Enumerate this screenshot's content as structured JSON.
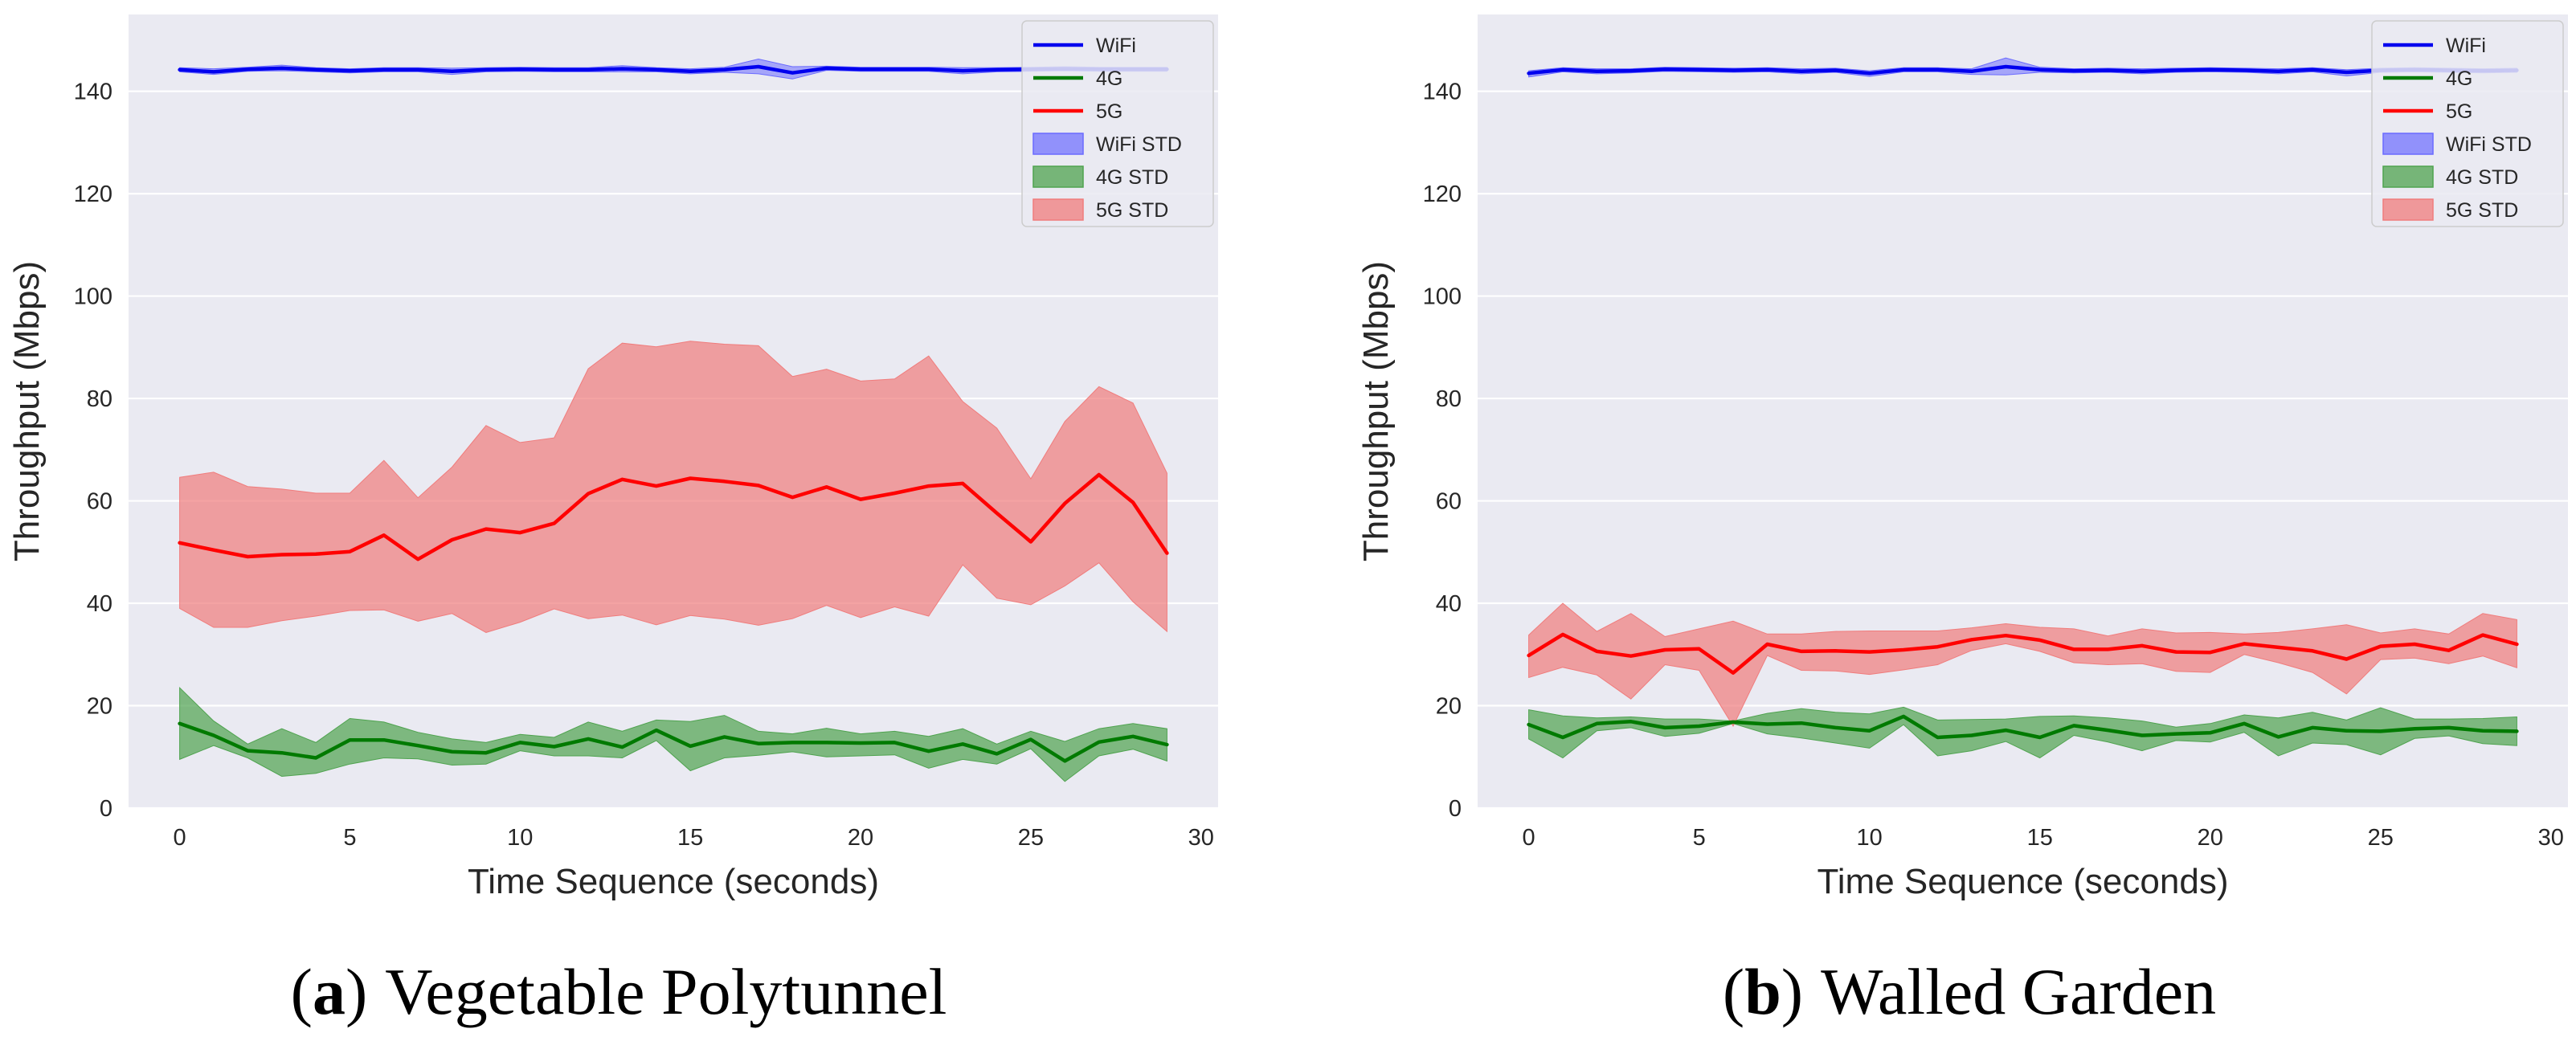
{
  "colors": {
    "wifi": "#0000ee",
    "lte4g": "#007a00",
    "nr5g": "#ff0000",
    "wifi_band": "#6b6bff",
    "lte4g_band": "#4fa34f",
    "nr5g_band": "#f07c7c",
    "panel_bg": "#eaeaf2",
    "grid": "#ffffff"
  },
  "chart_data": [
    {
      "type": "line",
      "caption_letter": "a",
      "caption_text": "Vegetable Polytunnel",
      "caption_open": "(",
      "caption_close": ")",
      "xlabel": "Time Sequence (seconds)",
      "ylabel": "Throughput (Mbps)",
      "xlim": [
        -1.5,
        30.5
      ],
      "ylim": [
        0,
        155
      ],
      "xticks": [
        0,
        5,
        10,
        15,
        20,
        25,
        30
      ],
      "yticks": [
        0,
        20,
        40,
        60,
        80,
        100,
        120,
        140
      ],
      "grid": "horizontal",
      "legend_position": "top-right",
      "x": [
        0,
        1,
        2,
        3,
        4,
        5,
        6,
        7,
        8,
        9,
        10,
        11,
        12,
        13,
        14,
        15,
        16,
        17,
        18,
        19,
        20,
        21,
        22,
        23,
        24,
        25,
        26,
        27,
        28,
        29
      ],
      "series": [
        {
          "name": "WiFi",
          "std_label": "WiFi STD",
          "values": [
            144.2,
            143.8,
            144.3,
            144.5,
            144.2,
            144.0,
            144.2,
            144.2,
            143.9,
            144.2,
            144.3,
            144.2,
            144.2,
            144.4,
            144.2,
            143.9,
            144.2,
            144.8,
            143.6,
            144.5,
            144.3,
            144.3,
            144.3,
            144.0,
            144.2,
            144.3,
            144.4,
            144.3,
            144.3,
            144.3
          ],
          "upper": [
            144.6,
            144.4,
            144.7,
            145.1,
            144.6,
            144.4,
            144.6,
            144.6,
            144.5,
            144.6,
            144.7,
            144.6,
            144.6,
            145.0,
            144.6,
            144.4,
            144.7,
            146.3,
            144.8,
            144.9,
            144.7,
            144.7,
            144.7,
            144.6,
            144.6,
            144.7,
            144.8,
            144.7,
            144.7,
            144.7
          ],
          "lower": [
            143.8,
            143.3,
            143.9,
            144.0,
            143.8,
            143.6,
            143.8,
            143.8,
            143.3,
            143.8,
            143.9,
            143.8,
            143.8,
            143.8,
            143.8,
            143.4,
            143.7,
            143.4,
            142.4,
            144.1,
            143.9,
            143.9,
            143.9,
            143.4,
            143.8,
            143.9,
            144.0,
            143.9,
            143.9,
            143.9
          ]
        },
        {
          "name": "4G",
          "std_label": "4G STD",
          "values": [
            16.5,
            14.2,
            11.2,
            10.8,
            9.8,
            13.3,
            13.3,
            12.2,
            11.0,
            10.8,
            12.8,
            12.0,
            13.5,
            11.9,
            15.2,
            12.1,
            13.9,
            12.6,
            12.8,
            12.8,
            12.7,
            12.8,
            11.1,
            12.5,
            10.6,
            13.4,
            9.2,
            12.9,
            14.0,
            12.4
          ],
          "upper": [
            23.5,
            17.0,
            12.5,
            15.5,
            12.8,
            17.5,
            16.8,
            14.8,
            13.5,
            12.8,
            14.4,
            13.8,
            16.8,
            15.0,
            17.2,
            16.9,
            18.1,
            15.0,
            14.5,
            15.6,
            14.5,
            15.0,
            14.0,
            15.5,
            12.5,
            15.0,
            13.0,
            15.5,
            16.5,
            15.5
          ],
          "lower": [
            9.5,
            12.2,
            9.8,
            6.2,
            6.8,
            8.6,
            9.8,
            9.6,
            8.4,
            8.6,
            11.2,
            10.2,
            10.2,
            9.8,
            13.2,
            7.3,
            9.8,
            10.3,
            11.0,
            10.0,
            10.2,
            10.4,
            7.8,
            9.5,
            8.6,
            11.6,
            5.2,
            10.2,
            11.5,
            9.2
          ]
        },
        {
          "name": "5G",
          "std_label": "5G STD",
          "values": [
            51.8,
            50.4,
            49.1,
            49.5,
            49.6,
            50.1,
            53.3,
            48.6,
            52.4,
            54.5,
            53.8,
            55.6,
            61.4,
            64.2,
            62.9,
            64.4,
            63.8,
            63.0,
            60.7,
            62.7,
            60.3,
            61.5,
            62.9,
            63.4,
            57.6,
            52.0,
            59.5,
            65.1,
            59.7,
            49.8
          ],
          "upper": [
            64.6,
            65.6,
            62.8,
            62.3,
            61.5,
            61.5,
            67.9,
            60.6,
            66.6,
            74.7,
            71.4,
            72.3,
            85.8,
            90.8,
            90.1,
            91.2,
            90.6,
            90.3,
            84.3,
            85.7,
            83.4,
            83.8,
            88.3,
            79.4,
            74.2,
            64.3,
            75.5,
            82.3,
            79.1,
            65.4
          ],
          "lower": [
            39.0,
            35.3,
            35.3,
            36.6,
            37.5,
            38.6,
            38.7,
            36.5,
            38.0,
            34.3,
            36.3,
            38.9,
            37.0,
            37.7,
            35.8,
            37.6,
            36.9,
            35.7,
            37.0,
            39.6,
            37.2,
            39.3,
            37.5,
            47.5,
            41.0,
            39.7,
            43.4,
            47.9,
            40.3,
            34.5
          ]
        }
      ]
    },
    {
      "type": "line",
      "caption_letter": "b",
      "caption_text": "Walled Garden",
      "caption_open": "(",
      "caption_close": ")",
      "xlabel": "Time Sequence (seconds)",
      "ylabel": "Throughput (Mbps)",
      "xlim": [
        -1.5,
        30.5
      ],
      "ylim": [
        0,
        155
      ],
      "xticks": [
        0,
        5,
        10,
        15,
        20,
        25,
        30
      ],
      "yticks": [
        0,
        20,
        40,
        60,
        80,
        100,
        120,
        140
      ],
      "grid": "horizontal",
      "legend_position": "top-right",
      "x": [
        0,
        1,
        2,
        3,
        4,
        5,
        6,
        7,
        8,
        9,
        10,
        11,
        12,
        13,
        14,
        15,
        16,
        17,
        18,
        19,
        20,
        21,
        22,
        23,
        24,
        25,
        26,
        27,
        28,
        29
      ],
      "series": [
        {
          "name": "WiFi",
          "std_label": "WiFi STD",
          "values": [
            143.5,
            144.2,
            143.9,
            144.0,
            144.3,
            144.2,
            144.1,
            144.2,
            143.9,
            144.1,
            143.5,
            144.2,
            144.2,
            143.9,
            144.8,
            144.2,
            144.0,
            144.1,
            143.9,
            144.1,
            144.2,
            144.1,
            143.9,
            144.2,
            143.7,
            144.1,
            144.2,
            144.1,
            144.0,
            144.1
          ],
          "upper": [
            144.0,
            144.6,
            144.4,
            144.4,
            144.7,
            144.6,
            144.5,
            144.6,
            144.4,
            144.5,
            144.0,
            144.6,
            144.6,
            144.4,
            146.5,
            144.7,
            144.4,
            144.5,
            144.4,
            144.5,
            144.6,
            144.5,
            144.4,
            144.6,
            144.2,
            144.5,
            144.6,
            144.5,
            144.4,
            144.5
          ],
          "lower": [
            142.8,
            143.8,
            143.4,
            143.6,
            143.9,
            143.8,
            143.7,
            143.8,
            143.4,
            143.7,
            142.9,
            143.8,
            143.8,
            143.3,
            143.2,
            143.7,
            143.6,
            143.7,
            143.4,
            143.7,
            143.8,
            143.7,
            143.4,
            143.8,
            143.0,
            143.7,
            143.8,
            143.7,
            143.6,
            143.7
          ]
        },
        {
          "name": "4G",
          "std_label": "4G STD",
          "values": [
            16.3,
            13.8,
            16.5,
            16.9,
            15.7,
            16.0,
            16.8,
            16.4,
            16.6,
            15.7,
            15.1,
            17.9,
            13.8,
            14.2,
            15.2,
            13.8,
            16.1,
            15.2,
            14.2,
            14.5,
            14.7,
            16.5,
            13.9,
            15.7,
            15.1,
            15.0,
            15.5,
            15.7,
            15.1,
            15.0
          ],
          "upper": [
            19.2,
            18.0,
            17.6,
            17.8,
            17.4,
            17.4,
            17.0,
            18.5,
            19.4,
            18.7,
            18.4,
            19.7,
            17.2,
            17.3,
            17.4,
            17.9,
            18.0,
            17.6,
            17.0,
            15.8,
            16.5,
            18.2,
            17.6,
            18.7,
            17.2,
            19.6,
            17.4,
            17.4,
            17.5,
            17.8
          ],
          "lower": [
            13.5,
            9.8,
            15.1,
            15.7,
            14.0,
            14.6,
            16.5,
            14.5,
            13.7,
            12.7,
            11.7,
            16.3,
            10.2,
            11.2,
            13.0,
            9.8,
            14.2,
            12.9,
            11.2,
            13.2,
            12.9,
            14.8,
            10.2,
            12.7,
            12.4,
            10.4,
            13.6,
            14.1,
            12.6,
            12.2
          ]
        },
        {
          "name": "5G",
          "std_label": "5G STD",
          "values": [
            29.8,
            33.9,
            30.6,
            29.7,
            30.9,
            31.1,
            26.4,
            32.0,
            30.6,
            30.7,
            30.5,
            30.9,
            31.5,
            32.9,
            33.7,
            32.8,
            31.0,
            31.0,
            31.7,
            30.5,
            30.4,
            32.1,
            31.4,
            30.7,
            29.1,
            31.6,
            32.0,
            30.8,
            33.8,
            32.0
          ],
          "upper": [
            33.8,
            40.0,
            34.5,
            38.0,
            33.5,
            35.0,
            36.5,
            34.0,
            34.0,
            34.5,
            34.6,
            34.6,
            34.6,
            35.2,
            36.0,
            35.3,
            35.0,
            33.6,
            35.0,
            34.2,
            34.3,
            34.0,
            34.3,
            35.0,
            35.8,
            34.2,
            35.0,
            34.0,
            38.0,
            36.8
          ],
          "lower": [
            25.5,
            27.5,
            26.0,
            21.3,
            28.0,
            26.9,
            16.0,
            29.8,
            26.9,
            26.8,
            26.1,
            27.0,
            28.0,
            30.8,
            32.1,
            30.6,
            28.4,
            28.0,
            28.2,
            26.7,
            26.5,
            30.0,
            28.4,
            26.5,
            22.3,
            29.0,
            29.3,
            28.2,
            29.7,
            27.4
          ]
        }
      ]
    }
  ]
}
